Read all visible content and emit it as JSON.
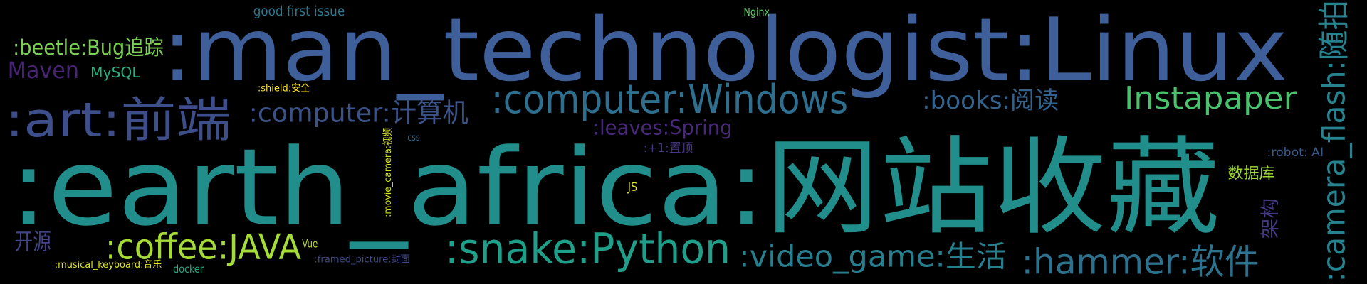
{
  "words": [
    {
      "text": ":man_technologist:Linux"
    },
    {
      "text": ":earth_africa:网站收藏"
    },
    {
      "text": ":art:前端"
    },
    {
      "text": ":computer:Windows"
    },
    {
      "text": ":computer:计算机"
    },
    {
      "text": ":beetle:Bug追踪"
    },
    {
      "text": "Maven"
    },
    {
      "text": "MySQL"
    },
    {
      "text": "good first issue"
    },
    {
      "text": "Nginx"
    },
    {
      "text": ":shield:安全"
    },
    {
      "text": "Instapaper"
    },
    {
      "text": ":books:阅读"
    },
    {
      "text": ":leaves:Spring"
    },
    {
      "text": "css"
    },
    {
      "text": ":movie_camera:视频"
    },
    {
      "text": ":+1:置顶"
    },
    {
      "text": ":robot: AI"
    },
    {
      "text": "数据库"
    },
    {
      "text": "JS"
    },
    {
      "text": "架构"
    },
    {
      "text": ":camera_flash:随拍"
    },
    {
      "text": "开源"
    },
    {
      "text": ":coffee:JAVA"
    },
    {
      "text": "Vue"
    },
    {
      "text": ":snake:Python"
    },
    {
      "text": ":video_game:生活"
    },
    {
      "text": ":hammer:软件"
    },
    {
      "text": ":framed_picture:封面"
    },
    {
      "text": ":musical_keyboard:音乐"
    },
    {
      "text": "docker"
    }
  ]
}
